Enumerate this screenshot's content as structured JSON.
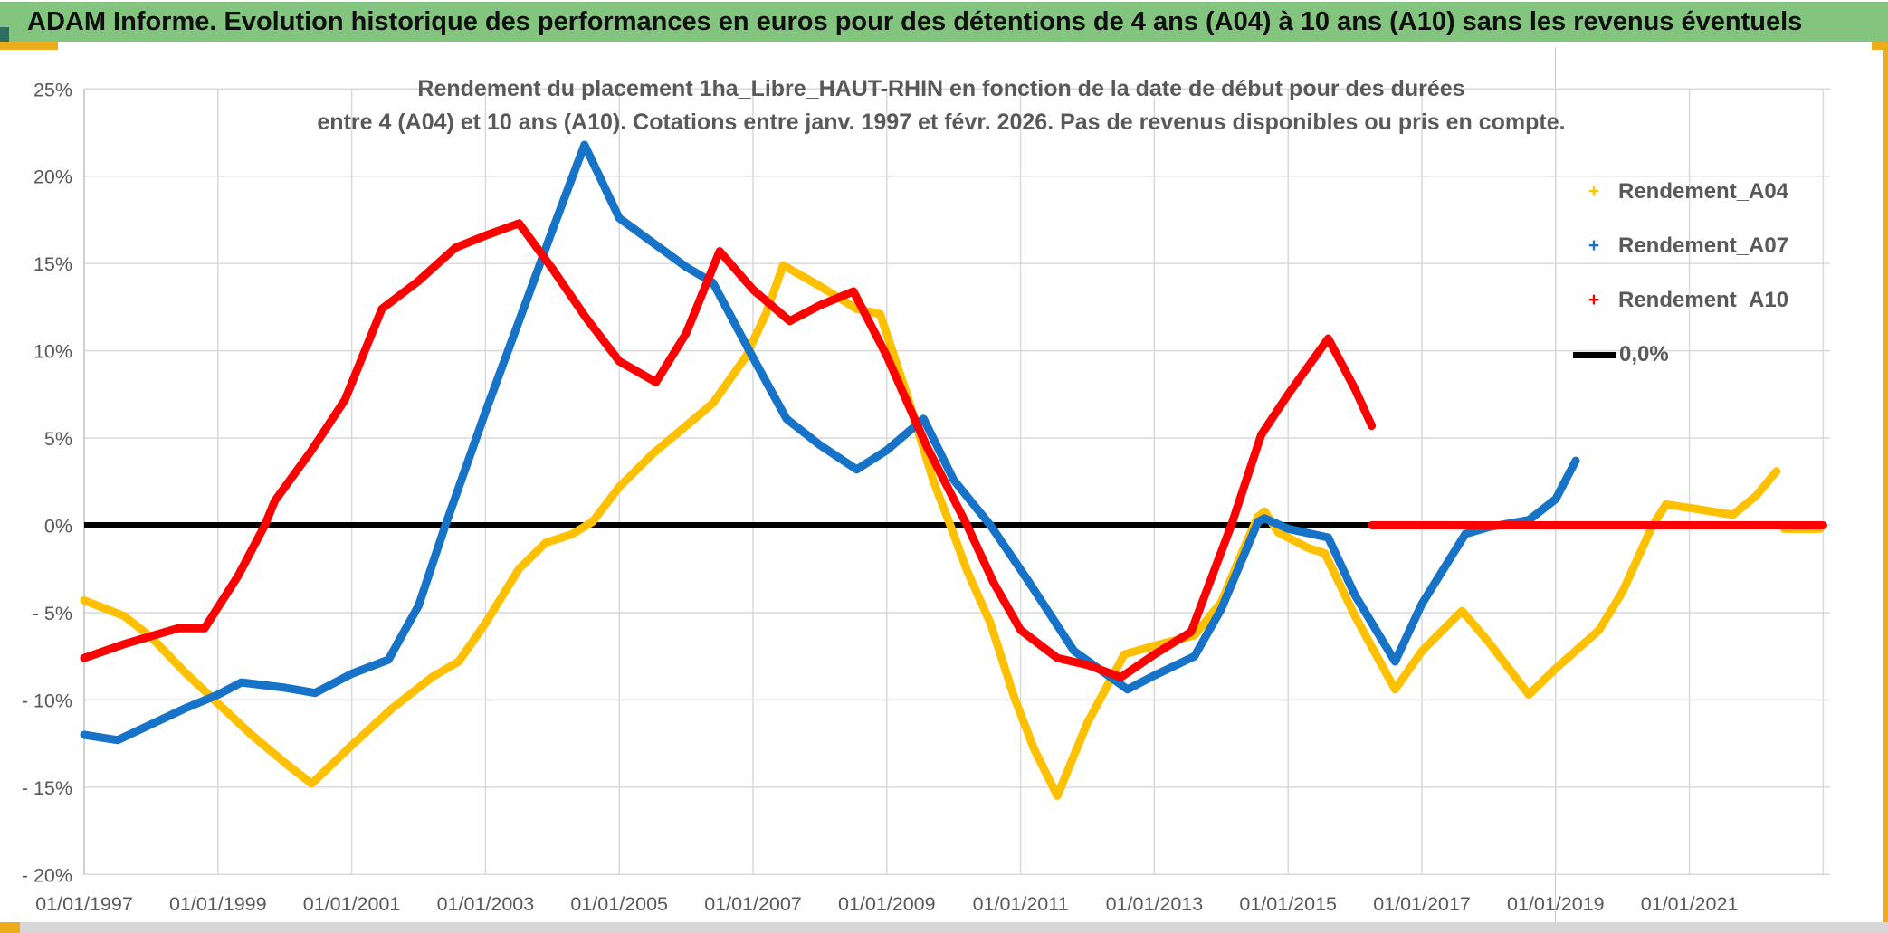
{
  "window": {
    "title": "ADAM Informe. Evolution historique des performances en euros pour des détentions de 4 ans (A04) à 10 ans (A10) sans les revenus éventuels",
    "colors": {
      "titlebar_bg": "#83C57E",
      "accent_gold": "#ECAC1C",
      "teal_corner": "#2E6E62",
      "bottom_strip": "#D7D7D7",
      "gridline": "#D9D9D9",
      "axis_text": "#595959"
    }
  },
  "chart_data": {
    "type": "line",
    "title_line1": "Rendement du placement 1ha_Libre_HAUT-RHIN en fonction de la date de début pour des durées",
    "title_line2": "entre 4 (A04) et 10 ans (A10). Cotations entre janv. 1997 et févr. 2026. Pas de revenus disponibles ou pris en compte.",
    "t_unit": "years since 01/01/1997",
    "x_axis": {
      "tick_labels": [
        "01/01/1997",
        "01/01/1999",
        "01/01/2001",
        "01/01/2003",
        "01/01/2005",
        "01/01/2007",
        "01/01/2009",
        "01/01/2011",
        "01/01/2013",
        "01/01/2015",
        "01/01/2017",
        "01/01/2019",
        "01/01/2021"
      ],
      "tick_t": [
        0,
        2,
        4,
        6,
        8,
        10,
        12,
        14,
        16,
        18,
        20,
        22,
        24
      ],
      "extra_gridline_t": 26
    },
    "y_axis": {
      "tick_labels": [
        "25%",
        "20%",
        "15%",
        "10%",
        "5%",
        "0%",
        "- 5%",
        "- 10%",
        "- 15%",
        "- 20%"
      ],
      "tick_values": [
        25,
        20,
        15,
        10,
        5,
        0,
        -5,
        -10,
        -15,
        -20
      ],
      "unit": "%"
    },
    "zero_line": {
      "legend_label": "0,0%",
      "value": 0,
      "color": "#000000",
      "t_start": 0,
      "t_end": 26.0
    },
    "series": [
      {
        "name": "Rendement_A04",
        "color": "#FFC000",
        "points": [
          [
            0,
            -4.3
          ],
          [
            0.2,
            -4.6
          ],
          [
            0.6,
            -5.2
          ],
          [
            1,
            -6.4
          ],
          [
            1.5,
            -8.4
          ],
          [
            2,
            -10.2
          ],
          [
            2.5,
            -12
          ],
          [
            3,
            -13.6
          ],
          [
            3.4,
            -14.8
          ],
          [
            4,
            -12.6
          ],
          [
            4.6,
            -10.5
          ],
          [
            5.2,
            -8.7
          ],
          [
            5.6,
            -7.8
          ],
          [
            6,
            -5.6
          ],
          [
            6.5,
            -2.5
          ],
          [
            6.9,
            -1
          ],
          [
            7.3,
            -0.5
          ],
          [
            7.6,
            0.2
          ],
          [
            8,
            2.2
          ],
          [
            8.5,
            4.1
          ],
          [
            9,
            5.7
          ],
          [
            9.4,
            7
          ],
          [
            9.9,
            9.7
          ],
          [
            10.2,
            12.2
          ],
          [
            10.45,
            14.9
          ],
          [
            11,
            13.7
          ],
          [
            11.55,
            12.4
          ],
          [
            11.9,
            12.1
          ],
          [
            12.3,
            7.5
          ],
          [
            12.7,
            2.5
          ],
          [
            12.95,
            0
          ],
          [
            13.2,
            -2.6
          ],
          [
            13.55,
            -5.6
          ],
          [
            13.9,
            -9.8
          ],
          [
            14.2,
            -12.8
          ],
          [
            14.55,
            -15.5
          ],
          [
            15,
            -11.3
          ],
          [
            15.55,
            -7.4
          ],
          [
            16,
            -6.9
          ],
          [
            16.6,
            -6.3
          ],
          [
            17,
            -4.4
          ],
          [
            17.35,
            -1.2
          ],
          [
            17.55,
            0.5
          ],
          [
            17.65,
            0.8
          ],
          [
            17.85,
            -0.4
          ],
          [
            18.3,
            -1.3
          ],
          [
            18.55,
            -1.6
          ],
          [
            19,
            -5.2
          ],
          [
            19.6,
            -9.4
          ],
          [
            20,
            -7.2
          ],
          [
            20.6,
            -4.9
          ],
          [
            21,
            -6.7
          ],
          [
            21.6,
            -9.7
          ],
          [
            22,
            -8.2
          ],
          [
            22.65,
            -6
          ],
          [
            23,
            -3.8
          ],
          [
            23.45,
            0
          ],
          [
            23.65,
            1.2
          ],
          [
            24,
            1
          ],
          [
            24.65,
            0.6
          ],
          [
            25,
            1.7
          ],
          [
            25.3,
            3.1
          ]
        ],
        "zero_tail": [
          [
            25.42,
            -0.2
          ],
          [
            25.95,
            -0.2
          ]
        ]
      },
      {
        "name": "Rendement_A07",
        "color": "#1673C7",
        "points": [
          [
            0,
            -12
          ],
          [
            0.5,
            -12.3
          ],
          [
            1,
            -11.4
          ],
          [
            1.5,
            -10.5
          ],
          [
            2,
            -9.7
          ],
          [
            2.35,
            -9
          ],
          [
            3,
            -9.3
          ],
          [
            3.45,
            -9.6
          ],
          [
            4,
            -8.5
          ],
          [
            4.55,
            -7.7
          ],
          [
            5,
            -4.6
          ],
          [
            5.4,
            0
          ],
          [
            6,
            6.5
          ],
          [
            6.5,
            11.7
          ],
          [
            7,
            16.9
          ],
          [
            7.48,
            21.8
          ],
          [
            8,
            17.6
          ],
          [
            9,
            14.8
          ],
          [
            9.4,
            13.9
          ],
          [
            10,
            9.6
          ],
          [
            10.5,
            6.1
          ],
          [
            11,
            4.6
          ],
          [
            11.55,
            3.2
          ],
          [
            12,
            4.3
          ],
          [
            12.55,
            6.1
          ],
          [
            13,
            2.6
          ],
          [
            13.55,
            0
          ],
          [
            14.1,
            -3.1
          ],
          [
            14.8,
            -7.2
          ],
          [
            15.6,
            -9.4
          ],
          [
            16,
            -8.6
          ],
          [
            16.6,
            -7.5
          ],
          [
            17,
            -4.8
          ],
          [
            17.55,
            0.2
          ],
          [
            17.65,
            0.4
          ],
          [
            18,
            -0.2
          ],
          [
            18.6,
            -0.7
          ],
          [
            19,
            -4
          ],
          [
            19.6,
            -7.8
          ],
          [
            20,
            -4.5
          ],
          [
            20.65,
            -0.5
          ],
          [
            21,
            -0.1
          ],
          [
            21.6,
            0.3
          ],
          [
            22,
            1.5
          ],
          [
            22.3,
            3.7
          ]
        ]
      },
      {
        "name": "Rendement_A10",
        "color": "#FE0000",
        "points": [
          [
            0,
            -7.6
          ],
          [
            0.6,
            -6.8
          ],
          [
            1.4,
            -5.9
          ],
          [
            1.8,
            -5.9
          ],
          [
            2.3,
            -2.9
          ],
          [
            2.7,
            0
          ],
          [
            2.85,
            1.4
          ],
          [
            3.4,
            4.3
          ],
          [
            3.9,
            7.2
          ],
          [
            4.45,
            12.4
          ],
          [
            5,
            14
          ],
          [
            5.55,
            15.9
          ],
          [
            6,
            16.6
          ],
          [
            6.5,
            17.3
          ],
          [
            7,
            14.7
          ],
          [
            7.5,
            11.9
          ],
          [
            8,
            9.4
          ],
          [
            8.55,
            8.2
          ],
          [
            9,
            11
          ],
          [
            9.5,
            15.7
          ],
          [
            10,
            13.5
          ],
          [
            10.55,
            11.7
          ],
          [
            11,
            12.6
          ],
          [
            11.5,
            13.4
          ],
          [
            12,
            9.7
          ],
          [
            12.6,
            4.5
          ],
          [
            13.2,
            0
          ],
          [
            13.6,
            -3.3
          ],
          [
            14,
            -6
          ],
          [
            14.55,
            -7.6
          ],
          [
            15,
            -8
          ],
          [
            15.5,
            -8.7
          ],
          [
            16,
            -7.4
          ],
          [
            16.55,
            -6.1
          ],
          [
            17.15,
            0
          ],
          [
            17.6,
            5.2
          ],
          [
            18,
            7.5
          ],
          [
            18.6,
            10.7
          ],
          [
            19,
            7.8
          ],
          [
            19.25,
            5.7
          ]
        ],
        "zero_tail": [
          [
            19.25,
            0
          ],
          [
            26.0,
            0
          ]
        ]
      }
    ],
    "legend": {
      "items": [
        {
          "label": "Rendement_A04",
          "marker": "+",
          "color": "#FFC000"
        },
        {
          "label": "Rendement_A07",
          "marker": "+",
          "color": "#1673C7"
        },
        {
          "label": "Rendement_A10",
          "marker": "+",
          "color": "#FE0000"
        },
        {
          "label": "0,0%",
          "marker": "line",
          "color": "#000000"
        }
      ]
    },
    "layout_hints": {
      "grid": true,
      "legend_position": "right",
      "ylim": [
        -20,
        25
      ]
    }
  }
}
